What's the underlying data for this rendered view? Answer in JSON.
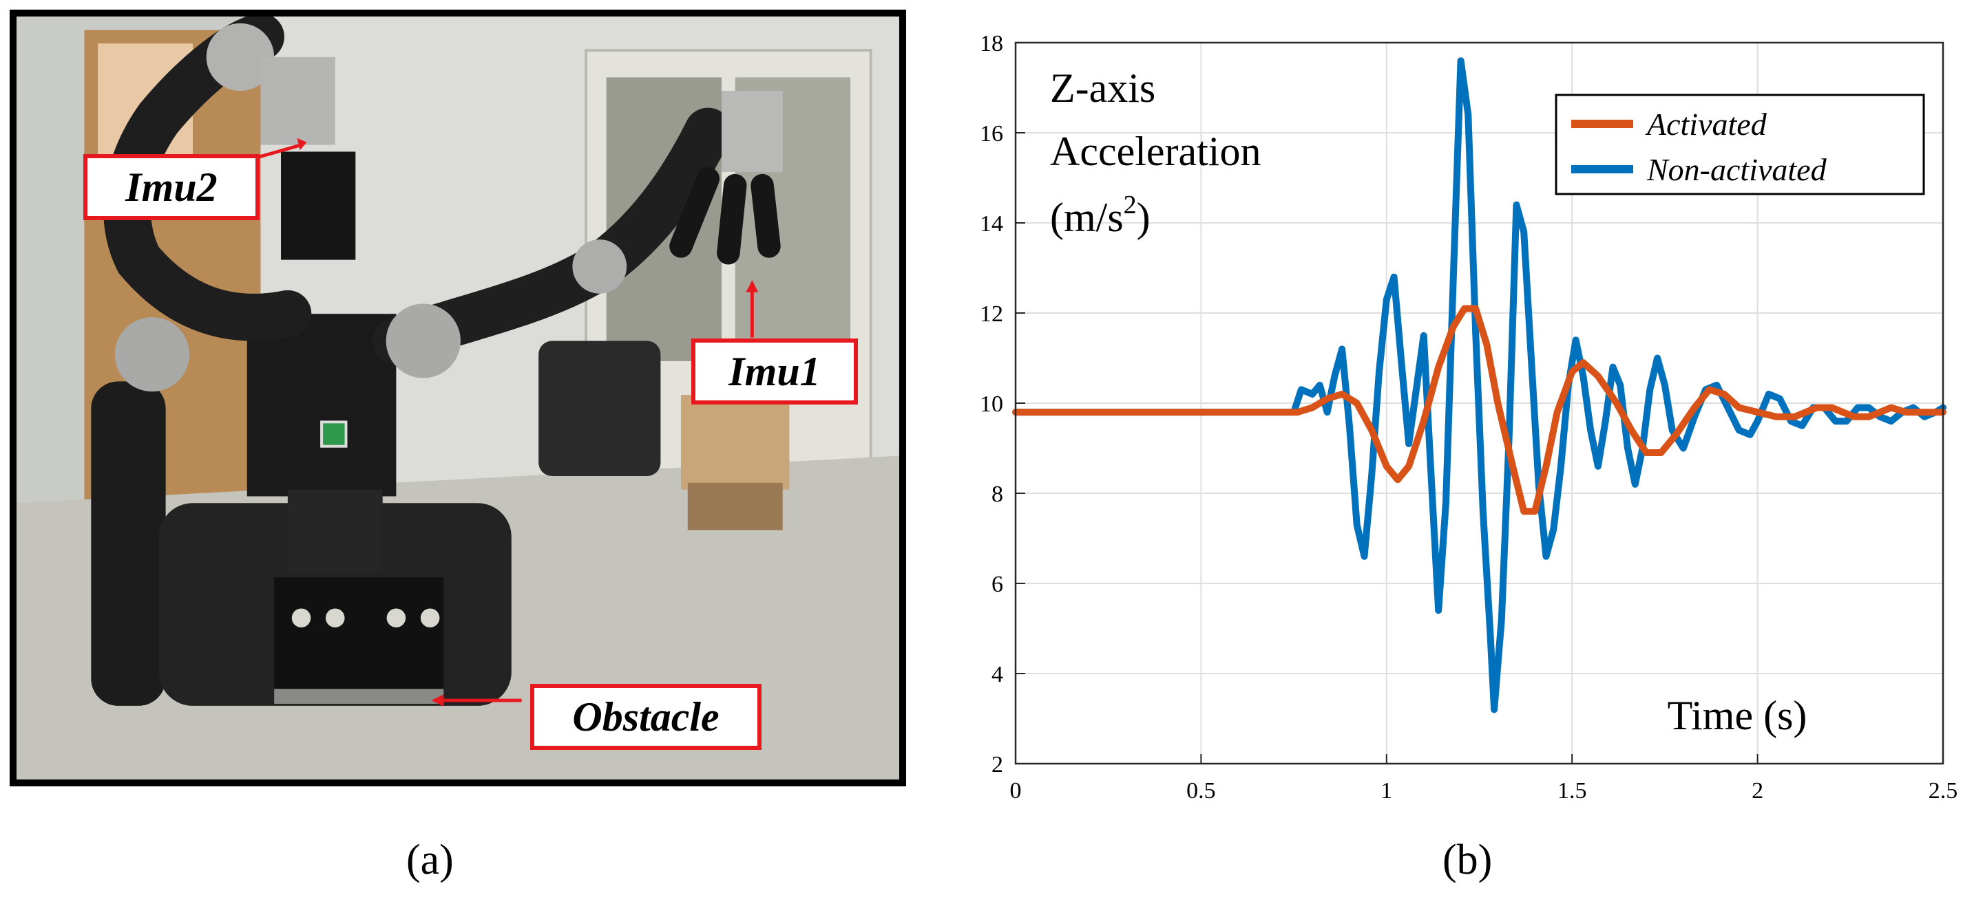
{
  "panel_a": {
    "caption": "(a)",
    "labels": {
      "imu2": "Imu2",
      "imu1": "Imu1",
      "obstacle": "Obstacle"
    },
    "callout_color": "#e8191e"
  },
  "panel_b": {
    "caption": "(b)"
  },
  "chart_data": {
    "type": "line",
    "ylabel_lines": [
      "Z-axis",
      "Acceleration",
      "(m/s",
      "2",
      ")"
    ],
    "xlabel": "Time (s)",
    "xlim": [
      0,
      2.5
    ],
    "ylim": [
      2,
      18
    ],
    "xticks": [
      0,
      0.5,
      1,
      1.5,
      2,
      2.5
    ],
    "xtick_labels": [
      "0",
      "0.5",
      "1",
      "1.5",
      "2",
      "2.5"
    ],
    "yticks": [
      2,
      4,
      6,
      8,
      10,
      12,
      14,
      16,
      18
    ],
    "ytick_labels": [
      "2",
      "4",
      "6",
      "8",
      "10",
      "12",
      "14",
      "16",
      "18"
    ],
    "grid": true,
    "legend_position": "top-right",
    "series": [
      {
        "name": "Activated",
        "color": "#d95319",
        "points": [
          [
            0,
            9.8
          ],
          [
            0.2,
            9.8
          ],
          [
            0.4,
            9.8
          ],
          [
            0.6,
            9.8
          ],
          [
            0.76,
            9.8
          ],
          [
            0.8,
            9.9
          ],
          [
            0.84,
            10.1
          ],
          [
            0.88,
            10.2
          ],
          [
            0.92,
            10.0
          ],
          [
            0.96,
            9.4
          ],
          [
            1.0,
            8.6
          ],
          [
            1.03,
            8.3
          ],
          [
            1.06,
            8.6
          ],
          [
            1.1,
            9.6
          ],
          [
            1.14,
            10.8
          ],
          [
            1.18,
            11.7
          ],
          [
            1.21,
            12.1
          ],
          [
            1.24,
            12.1
          ],
          [
            1.27,
            11.3
          ],
          [
            1.3,
            10.0
          ],
          [
            1.34,
            8.6
          ],
          [
            1.37,
            7.6
          ],
          [
            1.4,
            7.6
          ],
          [
            1.43,
            8.6
          ],
          [
            1.46,
            9.8
          ],
          [
            1.5,
            10.7
          ],
          [
            1.53,
            10.9
          ],
          [
            1.57,
            10.6
          ],
          [
            1.62,
            10.0
          ],
          [
            1.66,
            9.4
          ],
          [
            1.7,
            8.9
          ],
          [
            1.74,
            8.9
          ],
          [
            1.78,
            9.3
          ],
          [
            1.83,
            9.9
          ],
          [
            1.87,
            10.3
          ],
          [
            1.91,
            10.2
          ],
          [
            1.95,
            9.9
          ],
          [
            2.0,
            9.8
          ],
          [
            2.05,
            9.7
          ],
          [
            2.1,
            9.7
          ],
          [
            2.16,
            9.9
          ],
          [
            2.2,
            9.9
          ],
          [
            2.26,
            9.7
          ],
          [
            2.3,
            9.7
          ],
          [
            2.36,
            9.9
          ],
          [
            2.4,
            9.8
          ],
          [
            2.45,
            9.8
          ],
          [
            2.5,
            9.8
          ]
        ]
      },
      {
        "name": "Non-activated",
        "color": "#0072bd",
        "points": [
          [
            0,
            9.8
          ],
          [
            0.2,
            9.8
          ],
          [
            0.4,
            9.8
          ],
          [
            0.6,
            9.8
          ],
          [
            0.75,
            9.8
          ],
          [
            0.77,
            10.3
          ],
          [
            0.8,
            10.2
          ],
          [
            0.82,
            10.4
          ],
          [
            0.84,
            9.8
          ],
          [
            0.86,
            10.6
          ],
          [
            0.88,
            11.2
          ],
          [
            0.9,
            9.5
          ],
          [
            0.92,
            7.3
          ],
          [
            0.94,
            6.6
          ],
          [
            0.96,
            8.4
          ],
          [
            0.98,
            10.7
          ],
          [
            1.0,
            12.3
          ],
          [
            1.02,
            12.8
          ],
          [
            1.04,
            10.9
          ],
          [
            1.06,
            9.1
          ],
          [
            1.08,
            10.3
          ],
          [
            1.1,
            11.5
          ],
          [
            1.12,
            8.4
          ],
          [
            1.14,
            5.4
          ],
          [
            1.16,
            7.8
          ],
          [
            1.18,
            12.8
          ],
          [
            1.2,
            17.6
          ],
          [
            1.22,
            16.4
          ],
          [
            1.24,
            11.6
          ],
          [
            1.26,
            7.6
          ],
          [
            1.28,
            4.8
          ],
          [
            1.29,
            3.2
          ],
          [
            1.31,
            5.2
          ],
          [
            1.33,
            9.2
          ],
          [
            1.35,
            14.4
          ],
          [
            1.37,
            13.8
          ],
          [
            1.39,
            11.0
          ],
          [
            1.41,
            8.2
          ],
          [
            1.43,
            6.6
          ],
          [
            1.45,
            7.2
          ],
          [
            1.47,
            8.6
          ],
          [
            1.49,
            10.4
          ],
          [
            1.51,
            11.4
          ],
          [
            1.53,
            10.6
          ],
          [
            1.55,
            9.4
          ],
          [
            1.57,
            8.6
          ],
          [
            1.59,
            9.6
          ],
          [
            1.61,
            10.8
          ],
          [
            1.63,
            10.4
          ],
          [
            1.65,
            9.0
          ],
          [
            1.67,
            8.2
          ],
          [
            1.69,
            9.0
          ],
          [
            1.71,
            10.3
          ],
          [
            1.73,
            11.0
          ],
          [
            1.75,
            10.4
          ],
          [
            1.77,
            9.4
          ],
          [
            1.8,
            9.0
          ],
          [
            1.83,
            9.7
          ],
          [
            1.86,
            10.3
          ],
          [
            1.89,
            10.4
          ],
          [
            1.92,
            9.9
          ],
          [
            1.95,
            9.4
          ],
          [
            1.98,
            9.3
          ],
          [
            2.0,
            9.6
          ],
          [
            2.03,
            10.2
          ],
          [
            2.06,
            10.1
          ],
          [
            2.09,
            9.6
          ],
          [
            2.12,
            9.5
          ],
          [
            2.15,
            9.9
          ],
          [
            2.18,
            9.9
          ],
          [
            2.21,
            9.6
          ],
          [
            2.24,
            9.6
          ],
          [
            2.27,
            9.9
          ],
          [
            2.3,
            9.9
          ],
          [
            2.33,
            9.7
          ],
          [
            2.36,
            9.6
          ],
          [
            2.39,
            9.8
          ],
          [
            2.42,
            9.9
          ],
          [
            2.45,
            9.7
          ],
          [
            2.48,
            9.8
          ],
          [
            2.5,
            9.9
          ]
        ]
      }
    ]
  }
}
